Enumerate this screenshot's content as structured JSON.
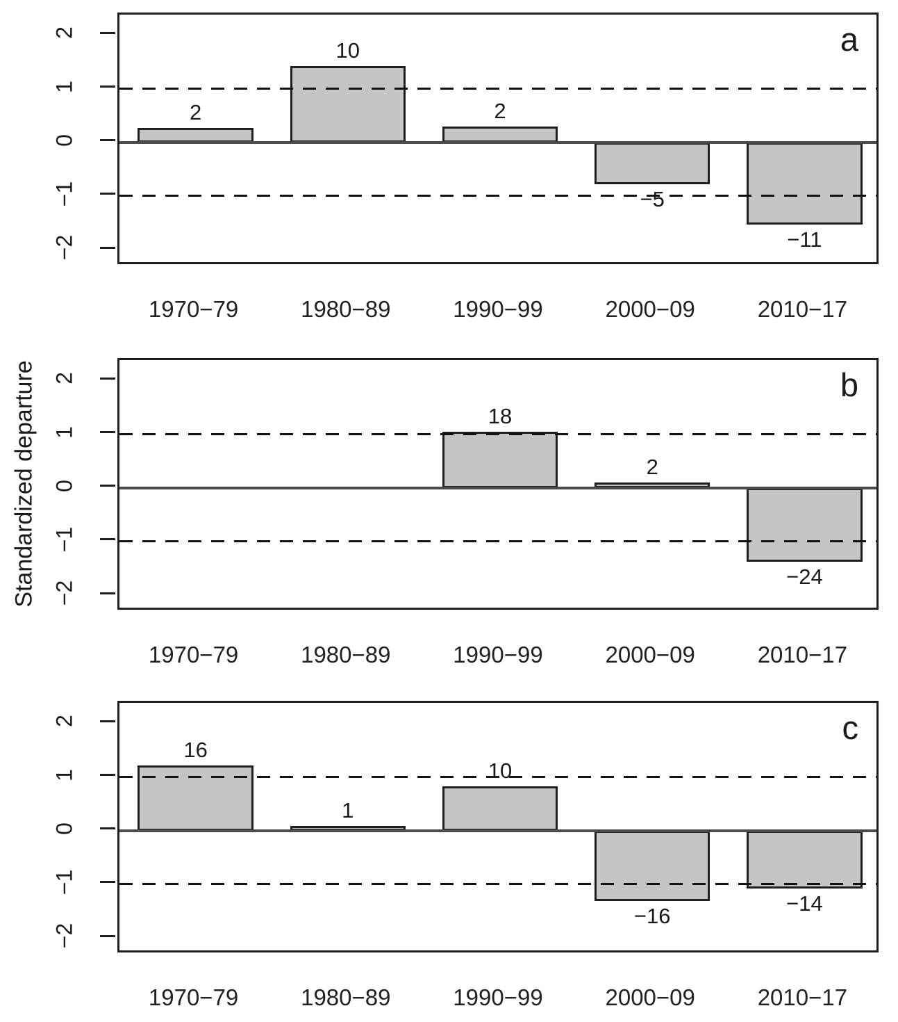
{
  "figure": {
    "ylabel": "Standardized departure",
    "background": "#ffffff",
    "bar_fill": "#c5c5c5",
    "bar_border": "#1f1f1f",
    "dashed_line_color": "#111111",
    "zero_line_color": "#4c4c4c",
    "text_color": "#1a1a1a"
  },
  "chart_data": [
    {
      "type": "bar",
      "panel_label": "a",
      "categories": [
        "1970−79",
        "1980−89",
        "1990−99",
        "2000−09",
        "2010−17"
      ],
      "values": [
        0.27,
        1.42,
        0.3,
        -0.78,
        -1.53
      ],
      "bar_labels": [
        "2",
        "10",
        "2",
        "−5",
        "−11"
      ],
      "title": "",
      "xlabel": "",
      "ylabel": "Standardized departure",
      "ylim": [
        -2.31,
        2.38
      ],
      "yticks": [
        2,
        1,
        0,
        -1,
        -2
      ],
      "ytick_labels": [
        "2",
        "1",
        "0",
        "−1",
        "−2"
      ],
      "dashed_reference_lines": [
        1,
        -1
      ],
      "zero_line": 0,
      "grid": "off",
      "legend": "none"
    },
    {
      "type": "bar",
      "panel_label": "b",
      "categories": [
        "1970−79",
        "1980−89",
        "1990−99",
        "2000−09",
        "2010−17"
      ],
      "values": [
        0,
        0,
        1.04,
        0.1,
        -1.38
      ],
      "bar_labels": [
        "",
        "",
        "18",
        "2",
        "−24"
      ],
      "title": "",
      "xlabel": "",
      "ylabel": "Standardized departure",
      "ylim": [
        -2.31,
        2.38
      ],
      "yticks": [
        2,
        1,
        0,
        -1,
        -2
      ],
      "ytick_labels": [
        "2",
        "1",
        "0",
        "−1",
        "−2"
      ],
      "dashed_reference_lines": [
        1,
        -1
      ],
      "zero_line": 0,
      "grid": "off",
      "legend": "none"
    },
    {
      "type": "bar",
      "panel_label": "c",
      "categories": [
        "1970−79",
        "1980−89",
        "1990−99",
        "2000−09",
        "2010−17"
      ],
      "values": [
        1.22,
        0.09,
        0.83,
        -1.31,
        -1.08
      ],
      "bar_labels": [
        "16",
        "1",
        "10",
        "−16",
        "−14"
      ],
      "title": "",
      "xlabel": "",
      "ylabel": "Standardized departure",
      "ylim": [
        -2.31,
        2.38
      ],
      "yticks": [
        2,
        1,
        0,
        -1,
        -2
      ],
      "ytick_labels": [
        "2",
        "1",
        "0",
        "−1",
        "−2"
      ],
      "dashed_reference_lines": [
        1,
        -1
      ],
      "zero_line": 0,
      "grid": "off",
      "legend": "none"
    }
  ]
}
